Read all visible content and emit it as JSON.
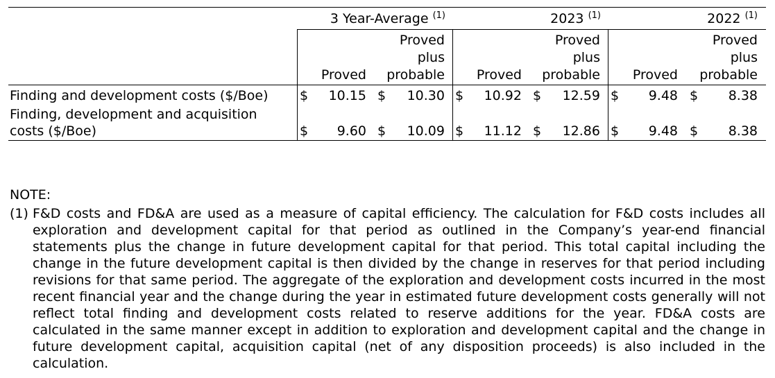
{
  "table": {
    "groups": [
      {
        "label": "3 Year-Average",
        "note": "(1)"
      },
      {
        "label": "2023",
        "note": "(1)"
      },
      {
        "label": "2022",
        "note": "(1)"
      }
    ],
    "subheaders": {
      "proved": "Proved",
      "pp_line1": "Proved",
      "pp_line2": "plus",
      "pp_line3": "probable"
    },
    "currency": "$",
    "rows": [
      {
        "label_line1": "Finding and development costs ($/Boe)",
        "label_line2": "",
        "values": [
          "10.15",
          "10.30",
          "10.92",
          "12.59",
          "9.48",
          "8.38"
        ]
      },
      {
        "label_line1": "Finding, development and acquisition",
        "label_line2": "costs ($/Boe)",
        "values": [
          "9.60",
          "10.09",
          "11.12",
          "12.86",
          "9.48",
          "8.38"
        ]
      }
    ]
  },
  "notes": {
    "heading": "NOTE:",
    "items": [
      {
        "marker": "(1)",
        "text": "F&D costs and FD&A are used as a measure of capital efficiency. The calculation for F&D costs includes all exploration and development capital for that period as outlined in the Company’s year-end financial statements plus the change in future development capital for that period. This total capital including the change in the future development capital is then divided by the change in reserves for that period including revisions for that same period. The aggregate of the exploration and development costs incurred in the most recent financial year and the change during the year in estimated future development costs generally will not reflect total finding and development costs related to reserve additions for the year. FD&A costs are calculated in the same manner except in addition to exploration and development capital and the change in future development capital, acquisition capital (net of any disposition proceeds) is also included in the calculation."
      }
    ]
  }
}
